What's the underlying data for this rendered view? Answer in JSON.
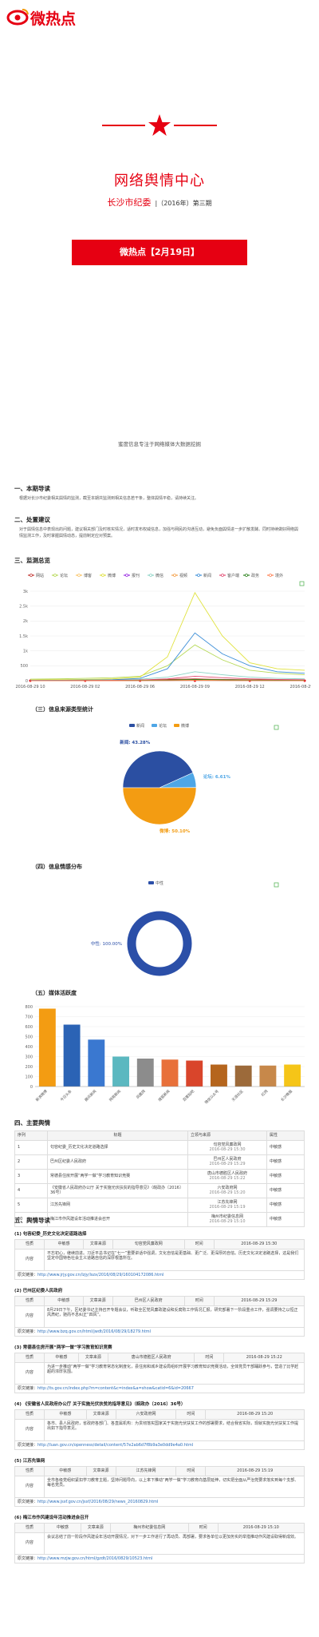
{
  "header": {
    "logo": "微热点",
    "title": "网络舆情中心",
    "org": "长沙市纪委",
    "issue": "|（2016年）第三期",
    "button": "微热点【2月19日】",
    "slogan": "蜜度信息专注于网络媒体大数据挖掘"
  },
  "guide": {
    "heading": "一、本期导读",
    "text": "根据对长沙市纪委相关舆情的监测，截至本期共监测到相关信息若干条，整体舆情平稳，请持续关注。"
  },
  "advice": {
    "heading": "二、处置建议",
    "text": "对于舆情信息中表现出的问题，建议相关部门及时核实情况，适时发布权威信息，加强与网民的沟通互动，避免负面舆情进一步扩散发酵。同时持续做好网络舆情监测工作，及时掌握舆情动态，提前制定应对预案。"
  },
  "chart_data": [
    {
      "type": "line",
      "title": "三、监测总览",
      "categories": [
        "2016-08-29 10",
        null,
        "2016-08-29 02",
        null,
        "2016-08-29 06",
        null,
        "2016-08-29 09",
        null,
        "2016-08-29 12",
        null,
        "2016-08-29 15"
      ],
      "ylim": [
        0,
        3000
      ],
      "yticks": [
        0,
        500,
        {
          "value": 1000,
          "label": "1k"
        },
        {
          "value": 1500,
          "label": "1.5k"
        },
        {
          "value": 2000,
          "label": "2k"
        },
        {
          "value": 2500,
          "label": "2.5k"
        },
        {
          "value": 3000,
          "label": "3k"
        }
      ],
      "grid": true,
      "series": [
        {
          "name": "网站",
          "color": "#c23531",
          "values": [
            5,
            5,
            10,
            10,
            20,
            40,
            60,
            40,
            30,
            20,
            15
          ]
        },
        {
          "name": "论坛",
          "color": "#b6d957",
          "values": [
            50,
            60,
            80,
            100,
            150,
            500,
            1200,
            700,
            350,
            250,
            200
          ]
        },
        {
          "name": "博客",
          "color": "#fac364",
          "values": [
            0,
            5,
            5,
            10,
            10,
            20,
            40,
            30,
            20,
            10,
            10
          ]
        },
        {
          "name": "微博",
          "color": "#e0e23e",
          "values": [
            20,
            30,
            40,
            60,
            120,
            800,
            2950,
            1500,
            600,
            400,
            350
          ]
        },
        {
          "name": "报刊",
          "color": "#9a2be2",
          "values": [
            0,
            0,
            5,
            5,
            10,
            10,
            20,
            15,
            10,
            5,
            5
          ]
        },
        {
          "name": "微信",
          "color": "#8cd3c5",
          "values": [
            10,
            10,
            20,
            30,
            50,
            120,
            300,
            200,
            120,
            80,
            60
          ]
        },
        {
          "name": "视频",
          "color": "#f4a04a",
          "values": [
            0,
            0,
            0,
            5,
            5,
            10,
            20,
            10,
            5,
            5,
            0
          ]
        },
        {
          "name": "新闻",
          "color": "#3d8fd8",
          "values": [
            10,
            15,
            20,
            30,
            80,
            400,
            1600,
            900,
            500,
            300,
            250
          ]
        },
        {
          "name": "客户端",
          "color": "#e44d74",
          "values": [
            5,
            5,
            10,
            15,
            20,
            60,
            150,
            100,
            60,
            40,
            30
          ]
        },
        {
          "name": "政务",
          "color": "#2b821d",
          "values": [
            0,
            5,
            5,
            5,
            10,
            20,
            40,
            30,
            20,
            15,
            10
          ]
        },
        {
          "name": "境外",
          "color": "#ff7f50",
          "values": [
            0,
            0,
            0,
            0,
            5,
            5,
            10,
            5,
            5,
            0,
            0
          ]
        }
      ]
    },
    {
      "type": "pie",
      "title": "（三）信息来源类型统计",
      "categories": [
        "新闻",
        "论坛",
        "微博"
      ],
      "values": [
        43.28,
        6.61,
        50.1
      ],
      "value_labels": [
        "新闻: 43.28%",
        "论坛: 6.61%",
        "微博: 50.10%"
      ],
      "colors": [
        "#2b4fa2",
        "#4ea6e6",
        "#f39c12"
      ]
    },
    {
      "type": "donut",
      "title": "（四）信息情感分布",
      "categories": [
        "中性"
      ],
      "values": [
        100
      ],
      "value_labels": [
        "中性: 100.00%"
      ],
      "colors": [
        "#2b4fa8"
      ]
    },
    {
      "type": "bar",
      "title": "（五）媒体活跃度",
      "categories": [
        "新浪微博",
        "今日头条",
        "腾讯新闻",
        "网易新闻",
        "凤凰网",
        "搜狐新闻",
        "百度贴吧",
        "微信公众号",
        "天涯社区",
        "红网",
        "长沙晚报"
      ],
      "values": [
        780,
        620,
        470,
        300,
        280,
        270,
        260,
        220,
        210,
        210,
        220
      ],
      "colors": [
        "#f39c12",
        "#2b63b5",
        "#3a78d0",
        "#5bb8c0",
        "#8c8c8c",
        "#e8703a",
        "#d9452b",
        "#b5651d",
        "#9c6a3a",
        "#c7884a",
        "#f5c518"
      ],
      "ylim": [
        0,
        800
      ],
      "yticks": [
        0,
        100,
        200,
        300,
        400,
        500,
        600,
        700,
        800
      ],
      "grid": true
    }
  ],
  "main": {
    "heading": "四、主要舆情",
    "columns": [
      "序列",
      "标题",
      "立领与来源",
      "属性"
    ],
    "rows": [
      [
        "1",
        "句容纪委_历史文化决定道路选择",
        "句容党风廉政网",
        "2016-08-29 15:30",
        "中敏感"
      ],
      [
        "2",
        "巴州区纪委人民政府",
        "巴州区人民政府",
        "2016-08-29 15:29",
        "中敏感"
      ],
      [
        "3",
        "常德县住房开展“两学一做”学习教育知识竞赛",
        "唐山市德胜区人民政府",
        "2016-08-29 15:22",
        "中敏感"
      ],
      [
        "4",
        "《安徽省人民政府办公厅 关于实施光伏扶贫的指导意见》（皖政办〔2016〕36号）",
        "六安政府网",
        "2016-08-29 15:20",
        "中敏感"
      ],
      [
        "5",
        "江苏先锋网",
        "江苏先锋网",
        "2016-08-29 15:19",
        "中敏感"
      ],
      [
        "10",
        "梅江市作风建设年活动推进会召开",
        "梅州市纪委信息网",
        "2016-08-29 15:10",
        "中敏感"
      ]
    ]
  },
  "digest": {
    "heading": "五、舆情导读",
    "items": [
      {
        "title": "(1) 句容纪委_历史文化决定道路选择",
        "fields": [
          "性质",
          "中敏感",
          "文章来源",
          "句容党风廉政网",
          "时间",
          "2016-08-29 15:30"
        ],
        "content_label": "内容",
        "content": "不忘初心，继续前进。习近平总书记在“七一”重要讲话中强调，文化自信是更基础、更广泛、更深厚的自信。历史文化决定道路选择，这是我们坚定中国特色社会主义道路自信的深厚根基所在。",
        "link_label": "原文链接：",
        "url": "http://www.jrjy.gov.cn/lzjy/lszx/2016/08/29/160104172086.html"
      },
      {
        "title": "(2) 巴州区纪委人民政府",
        "fields": [
          "性质",
          "中敏感",
          "文章来源",
          "巴州区人民政府",
          "时间",
          "2016-08-29 15:29"
        ],
        "content_label": "内容",
        "content": "8月29日下午，区纪委书记主持召开专题会议，听取全区党风廉政建设和反腐败工作情况汇报，研究部署下一阶段重点工作，强调要持之以恒正风肃纪，驰而不息纠正“四风”。",
        "link_label": "原文链接：",
        "url": "http://www.bzq.gov.cn/html/jwdt/2016/08/29/18279.html"
      },
      {
        "title": "(3) 常德县住房开展“两学一做”学习教育知识竞赛",
        "fields": [
          "性质",
          "中敏感",
          "文章来源",
          "唐山市德胜区人民政府",
          "时间",
          "2016-08-29 15:22"
        ],
        "content_label": "内容",
        "content": "为进一步推动“两学一做”学习教育常态化制度化，县住房和城乡建设局组织开展学习教育知识竞赛活动，全体党员干部踊跃参与，营造了比学赶超的浓厚氛围。",
        "link_label": "原文链接：",
        "url": "http://ts.gov.cn/index.php?m=content&c=index&a=show&catid=6&id=20667"
      },
      {
        "title": "(4) 《安徽省人民政府办公厅 关于实施光伏扶贫的指导意见》（皖政办〔2016〕36号）",
        "fields": [
          "性质",
          "中敏感",
          "文章来源",
          "六安政府网",
          "时间",
          "2016-08-29 15:20"
        ],
        "content_label": "内容",
        "content": "各市、县人民政府，省政府各部门、各直属机构：为贯彻落实国家关于实施光伏扶贫工作的部署要求，结合我省实际，现就实施光伏扶贫工作提出如下指导意见。",
        "link_label": "原文链接：",
        "url": "http://luan.gov.cn/openness/detail/content/57e2ab6d7f8b9a3e0dd9e4a0.html"
      },
      {
        "title": "(5) 江苏先锋网",
        "fields": [
          "性质",
          "中敏感",
          "文章来源",
          "江苏先锋网",
          "时间",
          "2016-08-29 15:19"
        ],
        "content_label": "内容",
        "content": "全市各级党组织紧扣学习教育主题，坚持问题导向，以上率下推动“两学一做”学习教育向基层延伸，切实把全面从严治党要求落实到每个支部、每名党员。",
        "link_label": "原文链接：",
        "url": "http://www.jsxf.gov.cn/jsxf/2016/08/29/news_20160829.html"
      },
      {
        "title": "(6) 梅江市作风建设年活动推进会召开",
        "fields": [
          "性质",
          "中敏感",
          "文章来源",
          "梅州市纪委信息网",
          "时间",
          "2016-08-29 15:10"
        ],
        "content_label": "内容",
        "content": "会议总结了前一阶段作风建设年活动开展情况，对下一步工作进行了再动员、再部署，要求各单位以更加务实的举措推动作风建设取得新成效。",
        "link_label": "原文链接：",
        "url": "http://www.mzjw.gov.cn/html/gzdt/2016/0829/10523.html"
      }
    ]
  }
}
